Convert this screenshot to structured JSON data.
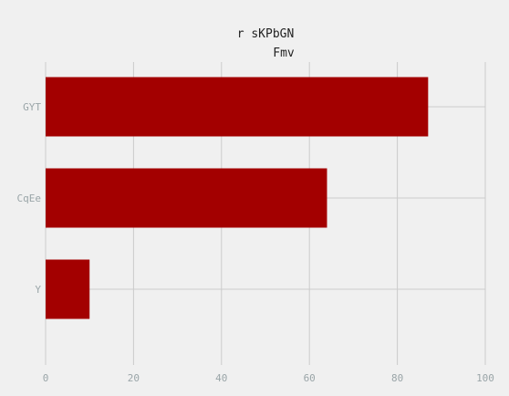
{
  "chart_data": {
    "type": "bar",
    "orientation": "horizontal",
    "title_line1": "r sKPbGN",
    "title_line2": "Fmv",
    "categories": [
      "GYT",
      "CqEe",
      "Y"
    ],
    "values": [
      87,
      64,
      10
    ],
    "xlim": [
      0,
      100
    ],
    "x_ticks": [
      0,
      20,
      40,
      60,
      80,
      100
    ],
    "grid": true,
    "bar_color": "#a30000",
    "background_color": "#f0f0f0",
    "grid_color": "#cbcbcb",
    "tick_label_color": "#9aa5a8",
    "title_color": "#222222"
  }
}
